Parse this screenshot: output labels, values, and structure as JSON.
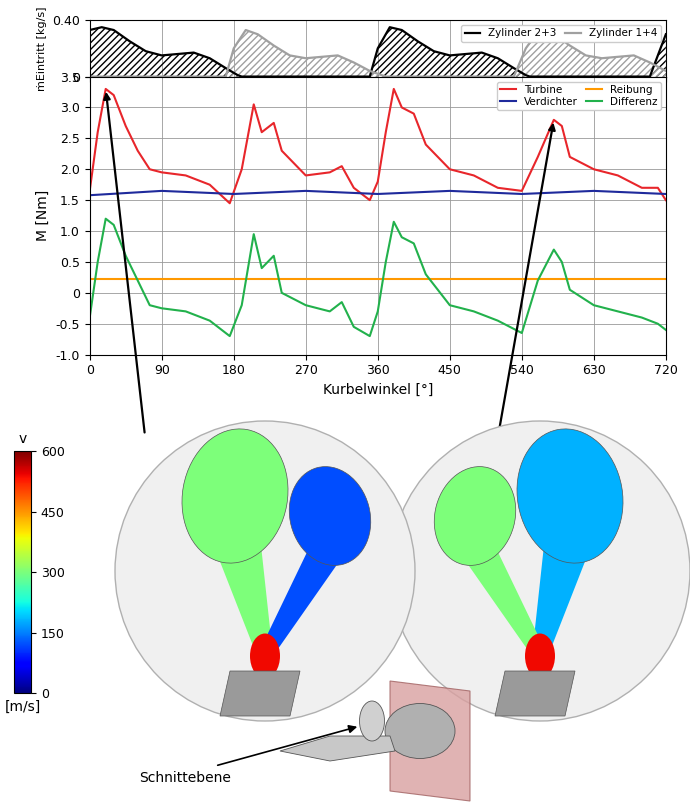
{
  "chart_data": [
    {
      "type": "area",
      "y_label": "ṁEintritt [kg/s]",
      "xlim": [
        0,
        720
      ],
      "xticks": [
        0,
        90,
        180,
        270,
        360,
        450,
        540,
        630,
        720
      ],
      "ylim": [
        0,
        0.4
      ],
      "yticks": [
        0,
        {
          "value": 0.4,
          "label": "0.40"
        }
      ],
      "grid": true,
      "legend": "upper right",
      "tick_labels": "y",
      "series": [
        {
          "name": "Zylinder 2+3",
          "color": "#000000",
          "x": [
            0,
            15,
            30,
            50,
            70,
            90,
            110,
            130,
            150,
            170,
            185,
            190,
            350,
            360,
            375,
            390,
            410,
            430,
            450,
            470,
            490,
            510,
            530,
            545,
            550,
            700,
            710,
            720
          ],
          "values": [
            0.33,
            0.35,
            0.33,
            0.25,
            0.18,
            0.15,
            0.16,
            0.17,
            0.13,
            0.06,
            0.01,
            0,
            0,
            0.2,
            0.35,
            0.33,
            0.25,
            0.18,
            0.15,
            0.16,
            0.17,
            0.13,
            0.06,
            0.01,
            0,
            0,
            0.15,
            0.3
          ]
        },
        {
          "name": "Zylinder 1+4",
          "color": "#a0a0a0",
          "x": [
            0,
            170,
            180,
            195,
            210,
            230,
            250,
            270,
            290,
            310,
            330,
            350,
            365,
            370,
            530,
            545,
            560,
            580,
            600,
            620,
            640,
            660,
            680,
            700,
            720
          ],
          "values": [
            0,
            0,
            0.2,
            0.33,
            0.3,
            0.22,
            0.15,
            0.13,
            0.14,
            0.15,
            0.1,
            0.04,
            0.01,
            0,
            0,
            0.2,
            0.32,
            0.3,
            0.22,
            0.15,
            0.13,
            0.14,
            0.15,
            0.1,
            0.04
          ]
        }
      ]
    },
    {
      "type": "line",
      "x_label": "Kurbelwinkel [°]",
      "y_label": "M [Nm]",
      "xlim": [
        0,
        720
      ],
      "xticks": [
        0,
        90,
        180,
        270,
        360,
        450,
        540,
        630,
        720
      ],
      "ylim": [
        -1.0,
        3.5
      ],
      "yticks": [
        {
          "value": -1.0,
          "label": "-1.0"
        },
        -0.5,
        0,
        0.5,
        {
          "value": 1.0,
          "label": "1.0"
        },
        1.5,
        {
          "value": 2.0,
          "label": "2.0"
        },
        2.5,
        {
          "value": 3.0,
          "label": "3.0"
        },
        3.5
      ],
      "grid": true,
      "legend": "upper right",
      "series": [
        {
          "name": "Turbine",
          "color": "#e8262b",
          "x": [
            0,
            10,
            20,
            30,
            45,
            60,
            75,
            90,
            120,
            150,
            175,
            190,
            205,
            215,
            230,
            240,
            270,
            300,
            315,
            330,
            350,
            360,
            370,
            380,
            390,
            405,
            420,
            450,
            480,
            510,
            540,
            560,
            580,
            590,
            600,
            630,
            660,
            690,
            710,
            720
          ],
          "values": [
            1.65,
            2.6,
            3.3,
            3.2,
            2.7,
            2.3,
            2.0,
            1.95,
            1.9,
            1.75,
            1.45,
            2.0,
            3.05,
            2.6,
            2.75,
            2.3,
            1.9,
            1.95,
            2.05,
            1.7,
            1.5,
            1.8,
            2.6,
            3.3,
            3.0,
            2.9,
            2.4,
            2.0,
            1.9,
            1.7,
            1.65,
            2.2,
            2.8,
            2.7,
            2.2,
            2.0,
            1.9,
            1.7,
            1.7,
            1.5
          ]
        },
        {
          "name": "Verdichter",
          "color": "#1f2a9c",
          "x": [
            0,
            90,
            180,
            270,
            360,
            450,
            540,
            630,
            720
          ],
          "values": [
            1.58,
            1.65,
            1.6,
            1.65,
            1.6,
            1.65,
            1.6,
            1.65,
            1.6
          ]
        },
        {
          "name": "Reibung",
          "color": "#ff9900",
          "x": [
            0,
            720
          ],
          "values": [
            0.22,
            0.22
          ]
        },
        {
          "name": "Differenz",
          "color": "#22b14c",
          "x": [
            0,
            10,
            20,
            30,
            45,
            60,
            75,
            90,
            120,
            150,
            175,
            190,
            205,
            215,
            230,
            240,
            270,
            300,
            315,
            330,
            350,
            360,
            370,
            380,
            390,
            405,
            420,
            450,
            480,
            510,
            540,
            560,
            580,
            590,
            600,
            630,
            660,
            690,
            710,
            720
          ],
          "values": [
            -0.4,
            0.5,
            1.2,
            1.1,
            0.6,
            0.2,
            -0.2,
            -0.25,
            -0.3,
            -0.45,
            -0.7,
            -0.2,
            0.95,
            0.4,
            0.6,
            0.0,
            -0.2,
            -0.3,
            -0.15,
            -0.55,
            -0.7,
            -0.3,
            0.5,
            1.15,
            0.9,
            0.8,
            0.3,
            -0.2,
            -0.3,
            -0.45,
            -0.65,
            0.2,
            0.7,
            0.5,
            0.05,
            -0.2,
            -0.3,
            -0.4,
            -0.5,
            -0.6
          ]
        }
      ]
    }
  ],
  "colorbar": {
    "label": "v",
    "unit": "[m/s]",
    "range": [
      0,
      600
    ],
    "ticks": [
      0,
      150,
      300,
      450,
      600
    ]
  },
  "annotation": "Schnittebene"
}
